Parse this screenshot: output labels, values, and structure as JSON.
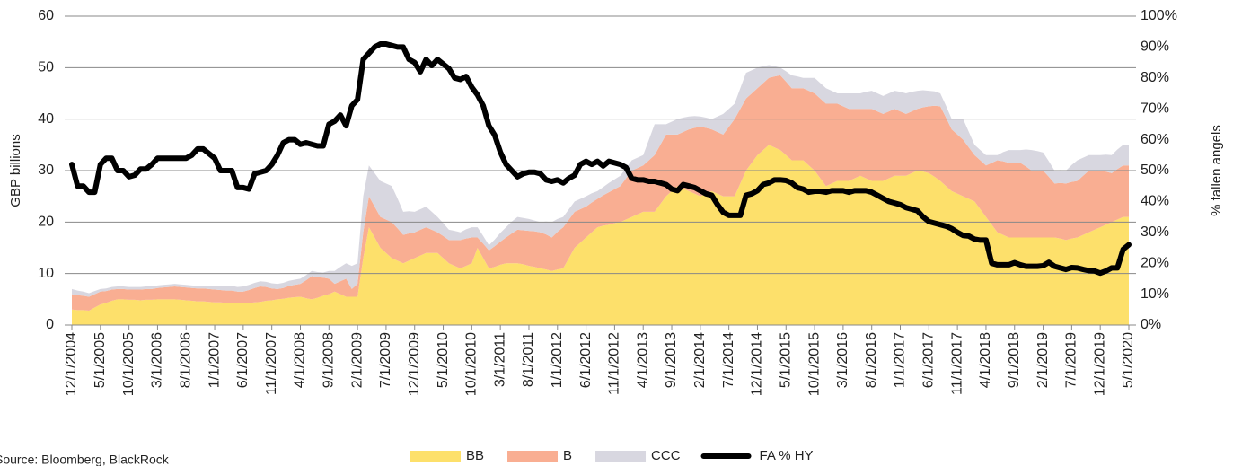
{
  "chart_data": {
    "type": "stacked-area-line",
    "y_label": "GBP billions",
    "y2_label": "% fallen angels",
    "source": "Source: Bloomberg, BlackRock",
    "categories": [
      "12/1/2004",
      null,
      null,
      null,
      null,
      "5/1/2005",
      null,
      null,
      null,
      null,
      "10/1/2005",
      null,
      null,
      null,
      null,
      "3/1/2006",
      null,
      null,
      null,
      null,
      "8/1/2006",
      null,
      null,
      null,
      null,
      "1/1/2007",
      null,
      null,
      null,
      null,
      "6/1/2007",
      null,
      null,
      null,
      null,
      "11/1/2007",
      null,
      null,
      null,
      null,
      "4/1/2008",
      null,
      null,
      null,
      null,
      "9/1/2008",
      null,
      null,
      null,
      null,
      "2/1/2009",
      null,
      null,
      null,
      null,
      "7/1/2009",
      null,
      null,
      null,
      null,
      "12/1/2009",
      null,
      null,
      null,
      null,
      "5/1/2010",
      null,
      null,
      null,
      null,
      "10/1/2010",
      null,
      null,
      null,
      null,
      "3/1/2011",
      null,
      null,
      null,
      null,
      "8/1/2011",
      null,
      null,
      null,
      null,
      "1/1/2012",
      null,
      null,
      null,
      null,
      "6/1/2012",
      null,
      null,
      null,
      null,
      "11/1/2012",
      null,
      null,
      null,
      null,
      "4/1/2013",
      null,
      null,
      null,
      null,
      "9/1/2013",
      null,
      null,
      null,
      null,
      "2/1/2014",
      null,
      null,
      null,
      null,
      "7/1/2014",
      null,
      null,
      null,
      null,
      "12/1/2014",
      null,
      null,
      null,
      null,
      "5/1/2015",
      null,
      null,
      null,
      null,
      "10/1/2015",
      null,
      null,
      null,
      null,
      "3/1/2016",
      null,
      null,
      null,
      null,
      "8/1/2016",
      null,
      null,
      null,
      null,
      "1/1/2017",
      null,
      null,
      null,
      null,
      "6/1/2017",
      null,
      null,
      null,
      null,
      "11/1/2017",
      null,
      null,
      null,
      null,
      "4/1/2018",
      null,
      null,
      null,
      null,
      "9/1/2018",
      null,
      null,
      null,
      null,
      "2/1/2019",
      null,
      null,
      null,
      null,
      "7/1/2019",
      null,
      null,
      null,
      null,
      "12/1/2019",
      null,
      null,
      null,
      null,
      "5/1/2020"
    ],
    "series": [
      {
        "name": "BB",
        "color": "#fde06b",
        "stack": true,
        "values": [
          3,
          2.9,
          2.9,
          2.8,
          3.4,
          4,
          4.3,
          4.7,
          5,
          5,
          4.9,
          4.9,
          4.8,
          4.9,
          4.9,
          5,
          5,
          5,
          5,
          4.9,
          4.8,
          4.7,
          4.6,
          4.6,
          4.5,
          4.4,
          4.4,
          4.3,
          4.3,
          4.2,
          4.2,
          4.3,
          4.4,
          4.5,
          4.7,
          4.8,
          5,
          5.1,
          5.3,
          5.4,
          5.5,
          5.2,
          5,
          5.3,
          5.7,
          6,
          6.5,
          6,
          5.5,
          5.5,
          5.5,
          13,
          19,
          17,
          15,
          14,
          13,
          12.5,
          12,
          12.5,
          13,
          13.5,
          14,
          14,
          14,
          13,
          12,
          11.5,
          11,
          11.5,
          12,
          15,
          13,
          11,
          11.3,
          11.7,
          12,
          12,
          12,
          11.8,
          11.5,
          11.3,
          11,
          10.8,
          10.5,
          10.8,
          11,
          13,
          15,
          16,
          17,
          18,
          19,
          19.3,
          19.5,
          19.8,
          20,
          20.5,
          21,
          21.5,
          22,
          22,
          22,
          23.5,
          25,
          26,
          27,
          26.5,
          26,
          25.5,
          25,
          25.5,
          26,
          25.5,
          25,
          25,
          25,
          27.5,
          30,
          31.5,
          33,
          34,
          35,
          34.5,
          34,
          33,
          32,
          32,
          32,
          31,
          30,
          28.5,
          27,
          27.5,
          28,
          28,
          28,
          28.5,
          29,
          28.5,
          28,
          28,
          28,
          28.5,
          29,
          29,
          29,
          29.5,
          30,
          29.8,
          29.5,
          28.8,
          28,
          27,
          26,
          25.5,
          25,
          24.5,
          24,
          22.5,
          21,
          19.5,
          18,
          17.5,
          17,
          17,
          17,
          17,
          17,
          17,
          17,
          17,
          17,
          16.8,
          16.5,
          16.8,
          17,
          17.5,
          18,
          18.5,
          19,
          19.5,
          20,
          20.5,
          21,
          21
        ]
      },
      {
        "name": "B",
        "color": "#f9ae92",
        "stack": true,
        "values": [
          3,
          2.9,
          2.8,
          2.7,
          2.6,
          2.5,
          2.3,
          2.2,
          2,
          2,
          2,
          2,
          2.1,
          2.1,
          2.1,
          2.2,
          2.3,
          2.4,
          2.5,
          2.5,
          2.5,
          2.5,
          2.5,
          2.5,
          2.5,
          2.5,
          2.4,
          2.4,
          2.4,
          2.3,
          2.3,
          2.5,
          2.8,
          3,
          2.7,
          2.3,
          2,
          2.1,
          2.3,
          2.4,
          2.5,
          3.5,
          4.5,
          4,
          3.5,
          3,
          1.5,
          2.5,
          3.5,
          1.5,
          2.5,
          5,
          6,
          6,
          6,
          6.5,
          7,
          6.3,
          5.5,
          5.3,
          5,
          5,
          5,
          4.5,
          4,
          4.3,
          4.5,
          5,
          5.5,
          5.3,
          5,
          2,
          2.8,
          3.5,
          4,
          4.5,
          5,
          5.8,
          6.5,
          6.6,
          6.8,
          6.9,
          7,
          6.8,
          6.5,
          7.3,
          8,
          7.5,
          7,
          6.5,
          6,
          5.8,
          5.5,
          5.9,
          6.3,
          6.6,
          7,
          8,
          9,
          9,
          9,
          10,
          11,
          11.5,
          12,
          11,
          10,
          11,
          12,
          12.8,
          13.5,
          12.8,
          12,
          12,
          12,
          13.5,
          15,
          14.5,
          14,
          13.5,
          13,
          13,
          13,
          13.8,
          14.5,
          14.3,
          14,
          14,
          14,
          14.5,
          15,
          15.5,
          16,
          15.5,
          15,
          14.5,
          14,
          13.5,
          13,
          13.5,
          14,
          13.5,
          13,
          13,
          13,
          12.5,
          12,
          12,
          12,
          12.5,
          13,
          13.8,
          14.5,
          13.3,
          12,
          11.5,
          11,
          10,
          9,
          9.5,
          10,
          12,
          14,
          14.3,
          14.5,
          14.5,
          14.5,
          13.8,
          13,
          13,
          13,
          11.8,
          10.5,
          10.8,
          11,
          11,
          11,
          11.5,
          12,
          11.5,
          11,
          10.3,
          9.5,
          9.8,
          10,
          10
        ]
      },
      {
        "name": "CCC",
        "color": "#d8d7e0",
        "stack": true,
        "values": [
          1,
          0.9,
          0.8,
          0.7,
          0.6,
          0.5,
          0.5,
          0.5,
          0.5,
          0.5,
          0.5,
          0.5,
          0.5,
          0.5,
          0.5,
          0.5,
          0.5,
          0.5,
          0.5,
          0.5,
          0.5,
          0.5,
          0.5,
          0.5,
          0.5,
          0.6,
          0.7,
          0.8,
          0.9,
          0.9,
          1,
          1,
          1,
          1,
          1,
          1,
          1,
          1,
          1,
          1,
          1,
          1,
          1,
          1,
          1,
          1.5,
          2.5,
          2.8,
          3,
          4.5,
          4,
          7,
          6,
          6.5,
          7,
          7,
          7,
          5.8,
          4.5,
          4.3,
          4,
          4,
          4,
          3.5,
          3,
          2.5,
          2,
          1.8,
          1.5,
          1.8,
          2,
          2,
          1.5,
          1,
          1.3,
          1.7,
          2,
          2.3,
          2.5,
          2.4,
          2.3,
          2.1,
          2,
          2.5,
          3,
          2.5,
          2,
          2,
          2,
          2,
          2,
          1.8,
          1.5,
          1.6,
          1.8,
          1.9,
          2,
          2,
          2,
          2,
          2,
          4,
          6,
          4,
          2,
          2.5,
          3,
          2.8,
          2.5,
          2.3,
          2,
          2,
          2,
          3,
          4,
          3.5,
          3,
          4,
          5,
          4.5,
          4,
          3.3,
          2.5,
          2,
          1.5,
          2,
          2.5,
          2.3,
          2,
          2.5,
          3,
          3,
          3,
          2.5,
          2,
          2.5,
          3,
          3,
          3,
          3.3,
          3.5,
          3.5,
          3.5,
          3.5,
          3.5,
          3.8,
          4,
          3.8,
          3.5,
          3.3,
          3,
          2.8,
          2.5,
          2.3,
          2,
          3,
          4,
          3,
          2,
          2,
          2,
          1.5,
          1,
          1.8,
          2.5,
          2.5,
          2.5,
          3.3,
          4,
          3.8,
          3.5,
          3,
          2.5,
          2.5,
          2.5,
          3.3,
          4,
          3.5,
          3,
          3,
          3,
          3.3,
          3.5,
          3.8,
          4,
          4
        ]
      },
      {
        "name": "FA % HY",
        "color": "#000000",
        "axis": "y2",
        "values": [
          52,
          45,
          45,
          43,
          43,
          52,
          54,
          54,
          50,
          50,
          48,
          48.5,
          50.5,
          50.5,
          52,
          54,
          54,
          54,
          54,
          54,
          54,
          55,
          57,
          57,
          55.5,
          54,
          50,
          50,
          50,
          44.5,
          44.5,
          44,
          49,
          49.5,
          50,
          52,
          55,
          59,
          60,
          60,
          58.5,
          59,
          58.5,
          58,
          58,
          65,
          66,
          68,
          64.5,
          71,
          73,
          86,
          88,
          90,
          91,
          91,
          90.5,
          90,
          90,
          86,
          85,
          82,
          86,
          84,
          86,
          84.5,
          83,
          80,
          79.5,
          80.5,
          77,
          74.5,
          71,
          64.5,
          61.5,
          56,
          52,
          50,
          48,
          49,
          49.5,
          49.5,
          49,
          47,
          46.5,
          47,
          46,
          47.5,
          48.5,
          52,
          53,
          52,
          53,
          51.5,
          53,
          52.5,
          52,
          51,
          47.5,
          47,
          47,
          46.5,
          46.5,
          46,
          45.5,
          44,
          43.5,
          45.5,
          45,
          44.5,
          43.5,
          42.5,
          42,
          39,
          36.5,
          35.5,
          35.5,
          35.5,
          42,
          42.5,
          43.5,
          45.5,
          46,
          47,
          47,
          46.8,
          46,
          44.5,
          44,
          43,
          43.3,
          43.3,
          43,
          43.5,
          43.5,
          43.5,
          43,
          43.5,
          43.5,
          43.5,
          43,
          42,
          41,
          40,
          39.5,
          39,
          38,
          37.5,
          37,
          35,
          33.5,
          33,
          32.5,
          32,
          31.2,
          30,
          29,
          28.8,
          27.8,
          27.5,
          27.5,
          20,
          19.5,
          19.5,
          19.5,
          20.2,
          19.5,
          19,
          19,
          19,
          19.2,
          20.3,
          19,
          18.5,
          18,
          18.6,
          18.5,
          18,
          17.6,
          17.5,
          16.8,
          17.5,
          18.5,
          18.5,
          24.5,
          26
        ]
      }
    ],
    "ylim": [
      0,
      60
    ],
    "yticks": [
      0,
      10,
      20,
      30,
      40,
      50,
      60
    ],
    "y2lim": [
      0,
      100
    ],
    "y2ticks": [
      {
        "value": 0,
        "label": "0%"
      },
      {
        "value": 10,
        "label": "10%"
      },
      {
        "value": 20,
        "label": "20%"
      },
      {
        "value": 30,
        "label": "30%"
      },
      {
        "value": 40,
        "label": "40%"
      },
      {
        "value": 50,
        "label": "50%"
      },
      {
        "value": 60,
        "label": "60%"
      },
      {
        "value": 70,
        "label": "70%"
      },
      {
        "value": 80,
        "label": "80%"
      },
      {
        "value": 90,
        "label": "90%"
      },
      {
        "value": 100,
        "label": "100%"
      }
    ],
    "grid": true,
    "legend": "bottom"
  }
}
